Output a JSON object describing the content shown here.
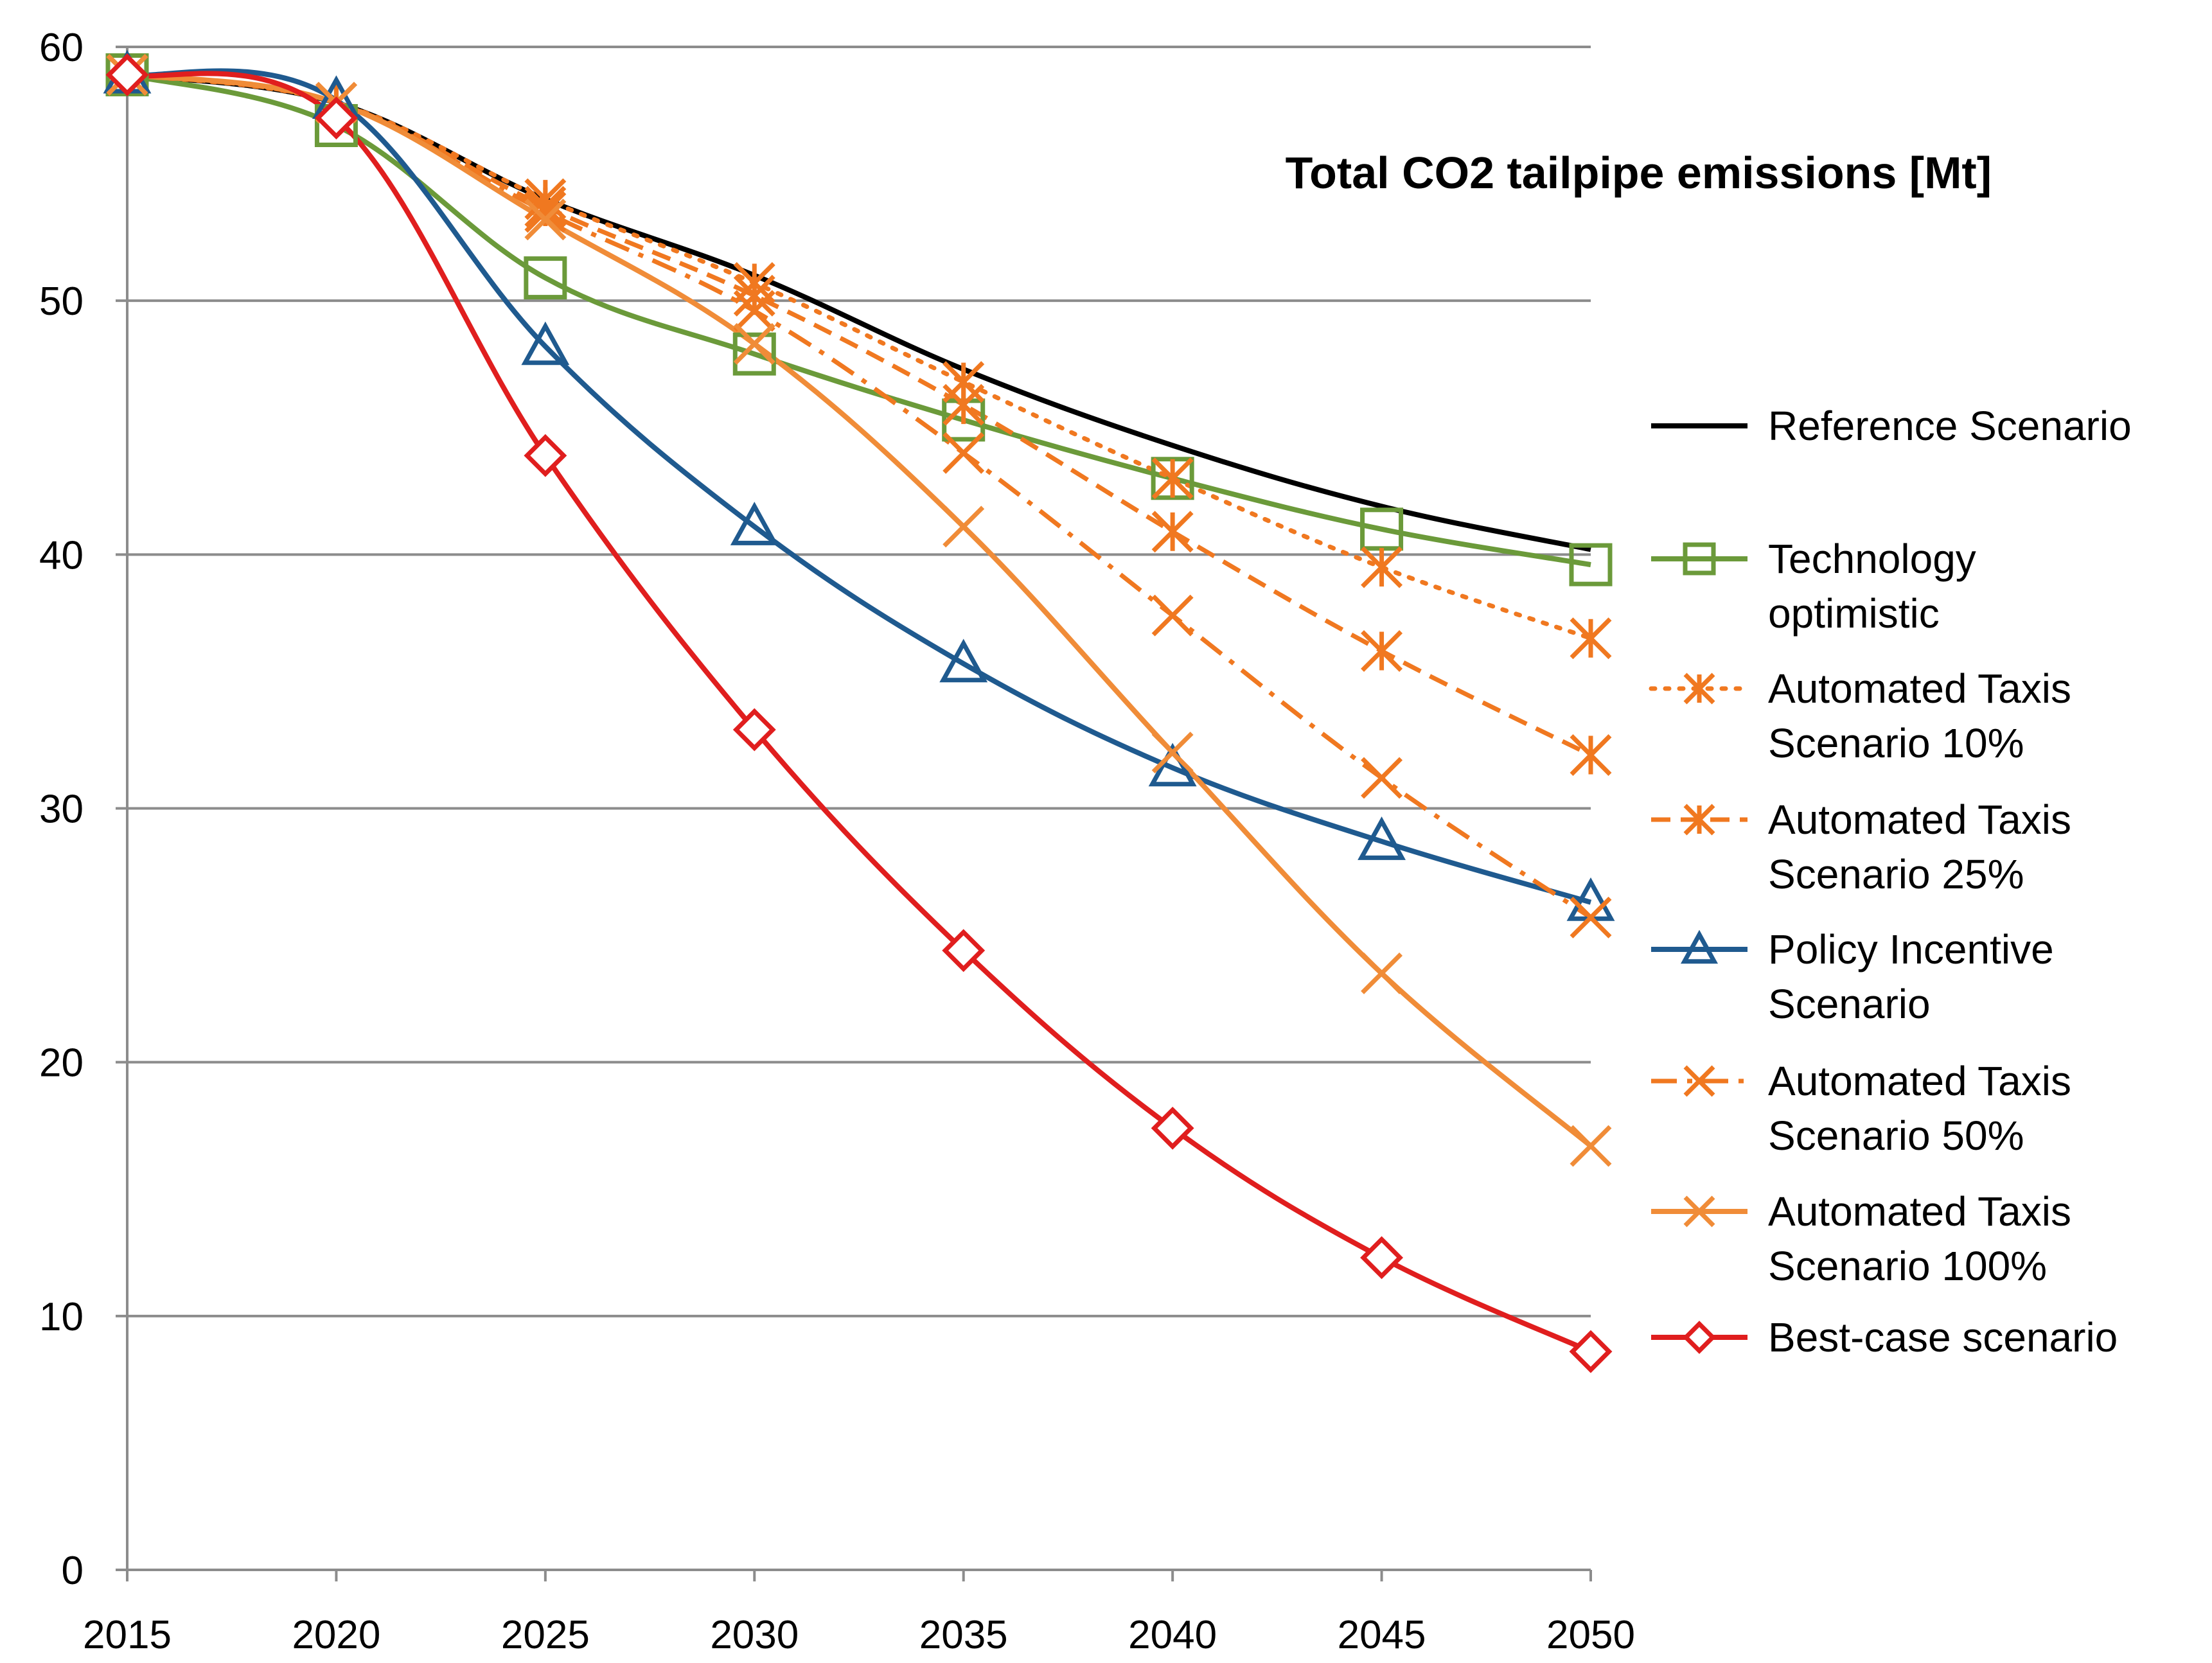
{
  "chart_data": {
    "type": "line",
    "title": "Total CO2 tailpipe emissions [Mt]",
    "xlabel": "",
    "ylabel": "",
    "x": [
      2015,
      2020,
      2025,
      2030,
      2035,
      2040,
      2045,
      2050
    ],
    "x_tick_labels": [
      "2015",
      "2020",
      "2025",
      "2030",
      "2035",
      "2040",
      "2045",
      "2050"
    ],
    "y_tick_labels": [
      "0",
      "10",
      "20",
      "30",
      "40",
      "50",
      "60"
    ],
    "y_ticks": [
      0,
      10,
      20,
      30,
      40,
      50,
      60
    ],
    "xlim": [
      2015,
      2050
    ],
    "ylim": [
      0,
      60
    ],
    "grid": "horizontal",
    "legend_position": "right",
    "series": [
      {
        "name": "Reference Scenario",
        "legend_lines": [
          "Reference Scenario"
        ],
        "color": "#000000",
        "dash": "solid",
        "marker": "none",
        "values": [
          58.9,
          57.8,
          54.0,
          51.0,
          47.3,
          44.3,
          41.9,
          40.2
        ]
      },
      {
        "name": "Technology optimistic",
        "legend_lines": [
          "Technology",
          "optimistic"
        ],
        "color": "#6B9A3A",
        "dash": "solid",
        "marker": "square",
        "values": [
          58.9,
          56.9,
          50.9,
          47.9,
          45.3,
          43.0,
          41.0,
          39.6
        ]
      },
      {
        "name": "Automated Taxis Scenario 10%",
        "legend_lines": [
          "Automated Taxis",
          "Scenario 10%"
        ],
        "color": "#F07820",
        "dash": "dot",
        "marker": "asterisk",
        "values": [
          58.9,
          57.8,
          54.0,
          50.7,
          46.8,
          43.0,
          39.5,
          36.7
        ]
      },
      {
        "name": "Automated Taxis Scenario 25%",
        "legend_lines": [
          "Automated Taxis",
          "Scenario 25%"
        ],
        "color": "#F07820",
        "dash": "dash",
        "marker": "asterisk",
        "values": [
          58.9,
          57.8,
          53.7,
          50.2,
          45.9,
          40.9,
          36.2,
          32.1
        ]
      },
      {
        "name": "Policy Incentive Scenario",
        "legend_lines": [
          "Policy Incentive",
          "Scenario"
        ],
        "color": "#1F5A8F",
        "dash": "solid",
        "marker": "triangle",
        "values": [
          58.9,
          57.9,
          48.2,
          41.1,
          35.7,
          31.6,
          28.7,
          26.3
        ]
      },
      {
        "name": "Automated Taxis Scenario 50%",
        "legend_lines": [
          "Automated Taxis",
          "Scenario 50%"
        ],
        "color": "#F07820",
        "dash": "dashdot",
        "marker": "cross",
        "values": [
          58.9,
          57.8,
          53.5,
          49.6,
          44.0,
          37.6,
          31.2,
          25.7
        ]
      },
      {
        "name": "Automated Taxis Scenario 100%",
        "legend_lines": [
          "Automated Taxis",
          "Scenario 100%"
        ],
        "color": "#F08C38",
        "dash": "solid",
        "marker": "cross",
        "values": [
          58.9,
          57.8,
          53.2,
          48.3,
          41.1,
          32.2,
          23.5,
          16.7
        ]
      },
      {
        "name": "Best-case scenario",
        "legend_lines": [
          "Best-case scenario"
        ],
        "color": "#E01E1E",
        "dash": "solid",
        "marker": "diamond",
        "values": [
          58.9,
          57.2,
          43.9,
          33.1,
          24.4,
          17.4,
          12.3,
          8.6
        ]
      }
    ]
  }
}
